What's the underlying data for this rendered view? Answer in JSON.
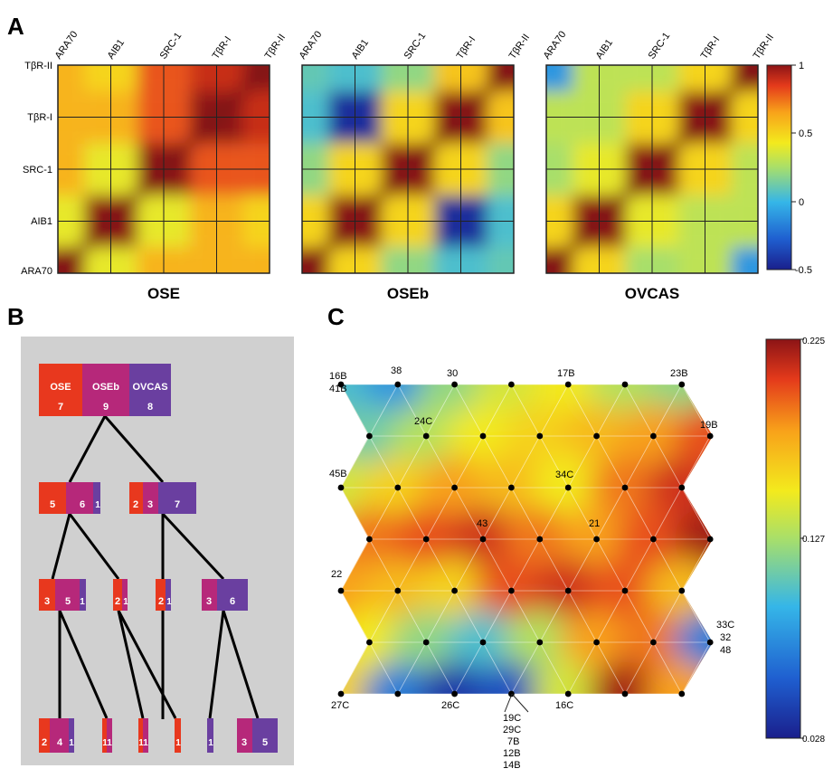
{
  "panels": {
    "a": {
      "letter": "A",
      "genes": [
        "ARA70",
        "AIB1",
        "SRC-1",
        "TβR-I",
        "TβR-II"
      ],
      "colorbar_ticks": [
        "1",
        "0.5",
        "0",
        "-0.5"
      ],
      "maps": [
        {
          "title": "OSE"
        },
        {
          "title": "OSEb"
        },
        {
          "title": "OVCAS"
        }
      ]
    },
    "b": {
      "letter": "B",
      "root": {
        "labels": [
          "OSE",
          "OSEb",
          "OVCAS"
        ],
        "counts": [
          "7",
          "9",
          "8"
        ]
      },
      "level1": [
        [
          "5",
          "6",
          "1"
        ],
        [
          "2",
          "3",
          "7"
        ]
      ],
      "level2": [
        [
          "3",
          "5",
          "1"
        ],
        [
          "2",
          "1"
        ],
        [
          "2",
          "1"
        ],
        [
          "3",
          "6"
        ]
      ],
      "level3": [
        [
          "2",
          "4",
          "1"
        ],
        [
          "1",
          "1"
        ],
        [
          "1",
          "1"
        ],
        [
          "1"
        ],
        [
          "1"
        ],
        [
          "3",
          "5"
        ]
      ]
    },
    "c": {
      "letter": "C",
      "colorbar_ticks": [
        "0.225",
        "0.127",
        "0.028"
      ],
      "node_labels": [
        "16B",
        "41B",
        "38",
        "30",
        "17B",
        "23B",
        "19B",
        "24C",
        "45B",
        "34C",
        "43",
        "21",
        "22",
        "33C",
        "32",
        "48",
        "27C",
        "26C",
        "16C",
        "19C",
        "29C",
        "7B",
        "12B",
        "14B"
      ]
    }
  },
  "chart_data": [
    {
      "type": "heatmap",
      "title": "OSE",
      "x": [
        "ARA70",
        "AIB1",
        "SRC-1",
        "TβR-I",
        "TβR-II"
      ],
      "y": [
        "ARA70",
        "AIB1",
        "SRC-1",
        "TβR-I",
        "TβR-II"
      ],
      "values": [
        [
          1,
          0.4,
          0.6,
          0.6,
          0.6
        ],
        [
          0.4,
          1,
          0.4,
          0.6,
          0.5
        ],
        [
          0.6,
          0.4,
          1,
          0.8,
          0.8
        ],
        [
          0.6,
          0.6,
          0.8,
          1,
          0.9
        ],
        [
          0.6,
          0.5,
          0.8,
          0.9,
          1
        ]
      ],
      "zlim": [
        -0.5,
        1
      ]
    },
    {
      "type": "heatmap",
      "title": "OSEb",
      "x": [
        "ARA70",
        "AIB1",
        "SRC-1",
        "TβR-I",
        "TβR-II"
      ],
      "y": [
        "ARA70",
        "AIB1",
        "SRC-1",
        "TβR-I",
        "TβR-II"
      ],
      "values": [
        [
          1,
          0.5,
          0.2,
          0.05,
          0.1
        ],
        [
          0.5,
          1,
          0.5,
          -0.45,
          0.05
        ],
        [
          0.2,
          0.5,
          1,
          0.5,
          0.2
        ],
        [
          0.05,
          -0.45,
          0.5,
          1,
          0.55
        ],
        [
          0.1,
          0.05,
          0.2,
          0.55,
          1
        ]
      ],
      "zlim": [
        -0.5,
        1
      ]
    },
    {
      "type": "heatmap",
      "title": "OVCAS",
      "x": [
        "ARA70",
        "AIB1",
        "SRC-1",
        "TβR-I",
        "TβR-II"
      ],
      "y": [
        "ARA70",
        "AIB1",
        "SRC-1",
        "TβR-I",
        "TβR-II"
      ],
      "values": [
        [
          1,
          0.5,
          0.25,
          0.3,
          -0.1
        ],
        [
          0.5,
          1,
          0.4,
          0.3,
          0.3
        ],
        [
          0.25,
          0.4,
          1,
          0.5,
          0.3
        ],
        [
          0.3,
          0.3,
          0.5,
          1,
          0.5
        ],
        [
          -0.1,
          0.3,
          0.3,
          0.5,
          1
        ]
      ],
      "zlim": [
        -0.5,
        1
      ]
    },
    {
      "type": "heatmap",
      "title": "",
      "grid": "hexagonal 7 columns x 7 rows",
      "values": [
        [
          0.1,
          0.08,
          0.12,
          0.14,
          0.15,
          0.13,
          0.12
        ],
        [
          0.11,
          0.13,
          0.15,
          0.16,
          0.17,
          0.18,
          0.2
        ],
        [
          0.14,
          0.16,
          0.18,
          0.17,
          0.15,
          0.19,
          0.21
        ],
        [
          0.19,
          0.2,
          0.21,
          0.19,
          0.18,
          0.2,
          0.22
        ],
        [
          0.18,
          0.17,
          0.16,
          0.2,
          0.21,
          0.2,
          0.17
        ],
        [
          0.15,
          0.12,
          0.1,
          0.13,
          0.18,
          0.19,
          0.07
        ],
        [
          0.16,
          0.07,
          0.04,
          0.05,
          0.14,
          0.22,
          0.18
        ]
      ],
      "zlim": [
        0.028,
        0.225
      ]
    }
  ]
}
